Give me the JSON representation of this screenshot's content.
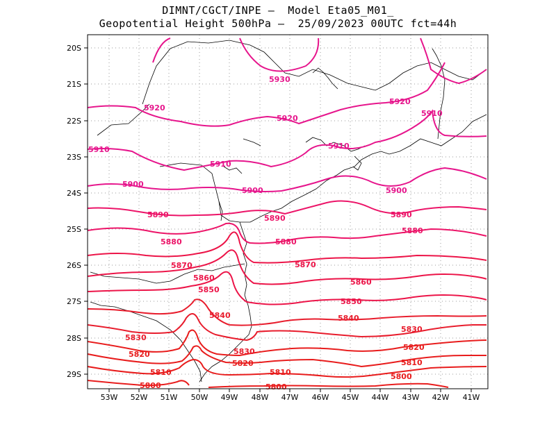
{
  "title_line1": "DIMNT/CGCT/INPE –  Model Eta05_M01_",
  "title_line2": "Geopotential Height 500hPa –  25/09/2023 00UTC fct=44h",
  "lat_labels": [
    "20S",
    "21S",
    "22S",
    "23S",
    "24S",
    "25S",
    "26S",
    "27S",
    "28S",
    "29S"
  ],
  "lon_labels": [
    "53W",
    "52W",
    "51W",
    "50W",
    "49W",
    "48W",
    "47W",
    "46W",
    "45W",
    "44W",
    "43W",
    "42W",
    "41W"
  ],
  "contour_labels": [
    {
      "text": "5930",
      "color": "#e6158c"
    },
    {
      "text": "5920",
      "color": "#e6158c"
    },
    {
      "text": "5920",
      "color": "#e6158c"
    },
    {
      "text": "5920",
      "color": "#e6158c"
    },
    {
      "text": "5910",
      "color": "#e6158c"
    },
    {
      "text": "5910",
      "color": "#e6158c"
    },
    {
      "text": "5910",
      "color": "#e6158c"
    },
    {
      "text": "5910",
      "color": "#e6158c"
    },
    {
      "text": "5900",
      "color": "#e6158c"
    },
    {
      "text": "5900",
      "color": "#e6158c"
    },
    {
      "text": "5900",
      "color": "#e6158c"
    },
    {
      "text": "5890",
      "color": "#ec1468"
    },
    {
      "text": "5890",
      "color": "#ec1468"
    },
    {
      "text": "5890",
      "color": "#ec1468"
    },
    {
      "text": "5880",
      "color": "#ec1468"
    },
    {
      "text": "5880",
      "color": "#ec1468"
    },
    {
      "text": "5880",
      "color": "#ec1468"
    },
    {
      "text": "5870",
      "color": "#ec1448"
    },
    {
      "text": "5870",
      "color": "#ec1448"
    },
    {
      "text": "5860",
      "color": "#ec1448"
    },
    {
      "text": "5860",
      "color": "#ec1448"
    },
    {
      "text": "5850",
      "color": "#ec1448"
    },
    {
      "text": "5850",
      "color": "#ec1448"
    },
    {
      "text": "5840",
      "color": "#e81c2c"
    },
    {
      "text": "5840",
      "color": "#e81c2c"
    },
    {
      "text": "5830",
      "color": "#e81c2c"
    },
    {
      "text": "5830",
      "color": "#e81c2c"
    },
    {
      "text": "5830",
      "color": "#e81c2c"
    },
    {
      "text": "5820",
      "color": "#e81c1c"
    },
    {
      "text": "5820",
      "color": "#e81c1c"
    },
    {
      "text": "5820",
      "color": "#e81c1c"
    },
    {
      "text": "5810",
      "color": "#e81c1c"
    },
    {
      "text": "5810",
      "color": "#e81c1c"
    },
    {
      "text": "5810",
      "color": "#e81c1c"
    },
    {
      "text": "5800",
      "color": "#e81c1c"
    },
    {
      "text": "5800",
      "color": "#e81c1c"
    },
    {
      "text": "5800",
      "color": "#e81c1c"
    }
  ],
  "colors": {
    "frame": "#000000",
    "grid": "#9a9a9a",
    "coast": "#000000"
  }
}
